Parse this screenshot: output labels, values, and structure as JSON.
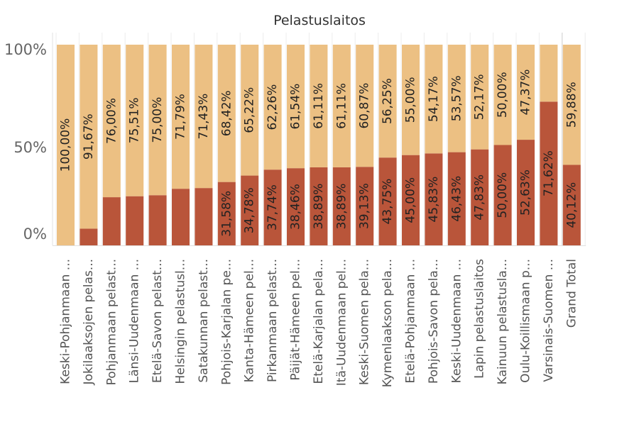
{
  "chart_data": {
    "type": "bar",
    "stacked": "percent",
    "title": "Pelastuslaitos",
    "yticks": [
      "0%",
      "50%",
      "100%"
    ],
    "ylim": [
      0,
      100
    ],
    "colors": {
      "bottom": "#b9553a",
      "top": "#ecc083",
      "background": "#ffffff"
    },
    "categories": [
      "Keski-Pohjanmaan ...",
      "Jokilaaksojen pelas...",
      "Pohjanmaan pelast...",
      "Länsi-Uudenmaan ...",
      "Etelä-Savon pelast...",
      "Helsingin pelastusl...",
      "Satakunnan pelast...",
      "Pohjois-Karjalan pe...",
      "Kanta-Hämeen pel...",
      "Pirkanmaan pelast...",
      "Päijät-Hämeen pel...",
      "Etelä-Karjalan pela...",
      "Itä-Uudenmaan pel...",
      "Keski-Suomen pela...",
      "Kymenlaakson pela...",
      "Etelä-Pohjanmaan ...",
      "Pohjois-Savon pela...",
      "Keski-Uudenmaan ...",
      "Lapin pelastuslaitos",
      "Kainuun pelastusla...",
      "Oulu-Koillismaan p...",
      "Varsinais-Suomen ...",
      "Grand Total"
    ],
    "series": [
      {
        "values": [
          0,
          8.33,
          24.0,
          24.49,
          25.0,
          28.21,
          28.57,
          31.58,
          34.78,
          37.74,
          38.46,
          38.89,
          38.89,
          39.13,
          43.75,
          45.0,
          45.83,
          46.43,
          47.83,
          50.0,
          52.63,
          71.62,
          40.12
        ],
        "labels": [
          "",
          "",
          "",
          "",
          "",
          "",
          "",
          "31,58%",
          "34,78%",
          "37,74%",
          "38,46%",
          "38,89%",
          "38,89%",
          "39,13%",
          "43,75%",
          "45,00%",
          "45,83%",
          "46,43%",
          "47,83%",
          "50,00%",
          "52,63%",
          "71,62%",
          "40,12%"
        ]
      },
      {
        "values": [
          100.0,
          91.67,
          76.0,
          75.51,
          75.0,
          71.79,
          71.43,
          68.42,
          65.22,
          62.26,
          61.54,
          61.11,
          61.11,
          60.87,
          56.25,
          55.0,
          54.17,
          53.57,
          52.17,
          50.0,
          47.37,
          28.38,
          59.88
        ],
        "labels": [
          "100,00%",
          "91,67%",
          "76,00%",
          "75,51%",
          "75,00%",
          "71,79%",
          "71,43%",
          "68,42%",
          "65,22%",
          "62,26%",
          "61,54%",
          "61,11%",
          "61,11%",
          "60,87%",
          "56,25%",
          "55,00%",
          "54,17%",
          "53,57%",
          "52,17%",
          "50,00%",
          "47,37%",
          "",
          "59,88%"
        ]
      }
    ]
  }
}
